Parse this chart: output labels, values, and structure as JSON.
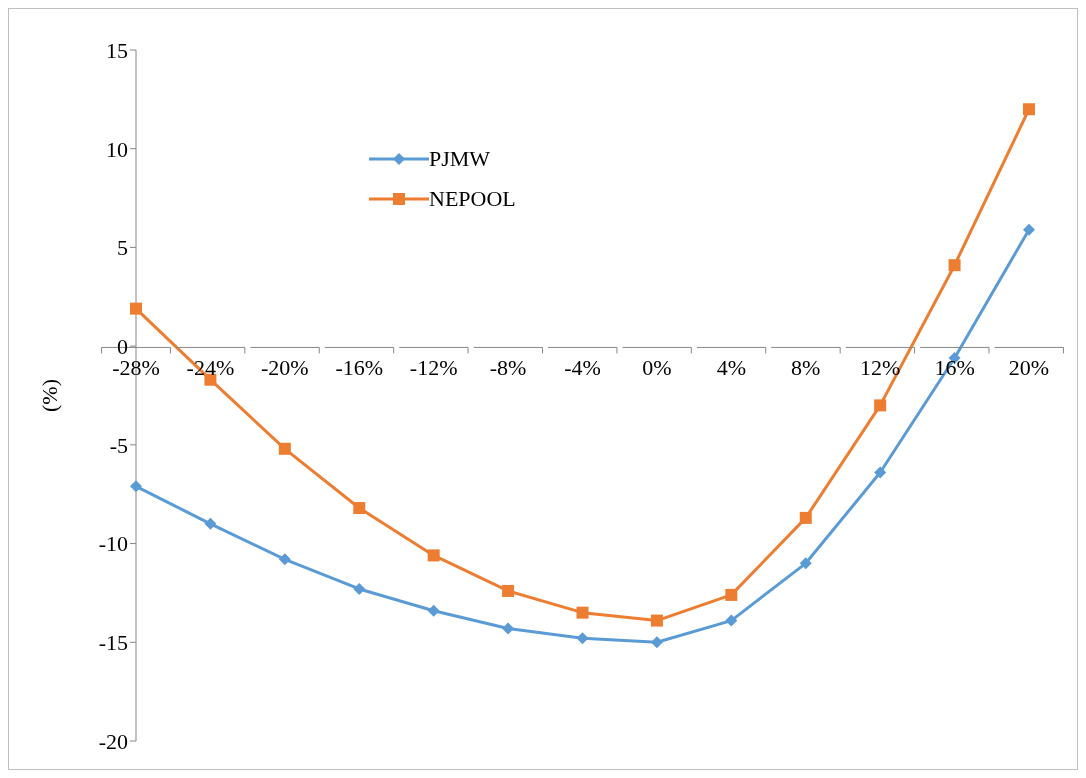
{
  "chart_data": {
    "type": "line",
    "ylabel": "(%)",
    "categories": [
      "-28%",
      "-24%",
      "-20%",
      "-16%",
      "-12%",
      "-8%",
      "-4%",
      "0%",
      "4%",
      "8%",
      "12%",
      "16%",
      "20%"
    ],
    "series": [
      {
        "name": "PJMW",
        "color": "#5b9bd5",
        "marker": "diamond",
        "values": [
          -7.1,
          -9.0,
          -10.8,
          -12.3,
          -13.4,
          -14.3,
          -14.8,
          -15.0,
          -13.9,
          -11.0,
          -6.4,
          -0.6,
          5.9
        ]
      },
      {
        "name": "NEPOOL",
        "color": "#ed7d31",
        "marker": "square",
        "values": [
          1.9,
          -1.7,
          -5.2,
          -8.2,
          -10.6,
          -12.4,
          -13.5,
          -13.9,
          -12.6,
          -8.7,
          -3.0,
          4.1,
          12.0
        ]
      }
    ],
    "ylim": [
      -20,
      15
    ],
    "yticks": [
      -20,
      -15,
      -10,
      -5,
      0,
      5,
      10,
      15
    ],
    "grid": false,
    "legend": "top left"
  }
}
